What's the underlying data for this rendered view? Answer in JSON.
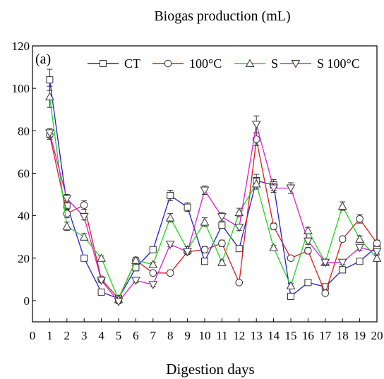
{
  "chart_data": {
    "type": "line",
    "ylabel": "Biogas production (mL)",
    "xlabel": "Digestion days",
    "panel_label": "(a)",
    "xlim": [
      0,
      20
    ],
    "ylim": [
      -10,
      120
    ],
    "x_ticks": [
      "0",
      "1",
      "2",
      "3",
      "4",
      "5",
      "6",
      "7",
      "8",
      "9",
      "10",
      "11",
      "12",
      "13",
      "14",
      "15",
      "16",
      "17",
      "18",
      "19",
      "20"
    ],
    "y_ticks": [
      "0",
      "20",
      "40",
      "60",
      "80",
      "100",
      "120"
    ],
    "grid": false,
    "legend_position": "top",
    "x": [
      1,
      2,
      3,
      4,
      5,
      6,
      7,
      8,
      9,
      10,
      11,
      12,
      13,
      14,
      15,
      16,
      17,
      18,
      19,
      20
    ],
    "series": [
      {
        "name": "CT",
        "color": "#1f1fd6",
        "marker": "square",
        "values": [
          104,
          45,
          20,
          4,
          1,
          15.5,
          24,
          49.5,
          44,
          18.5,
          35.5,
          24.5,
          56.5,
          54.5,
          2,
          8.5,
          6.5,
          14.5,
          18.5,
          25.5
        ],
        "errors": [
          5,
          2,
          1,
          1,
          1,
          1.5,
          1,
          2.5,
          2,
          1.5,
          1.5,
          1,
          3,
          2.5,
          1.5,
          1,
          1,
          1.5,
          1,
          1.5
        ]
      },
      {
        "name": "100°C",
        "color": "#e01a1a",
        "marker": "circle",
        "values": [
          78,
          41,
          45,
          10,
          1,
          19,
          13,
          13,
          23,
          24,
          27,
          8.5,
          76,
          35,
          20,
          23.5,
          3.5,
          29,
          38.5,
          27
        ],
        "errors": [
          2,
          2,
          2,
          1,
          1,
          1,
          1,
          1,
          1,
          1.5,
          1.5,
          1,
          3,
          1.5,
          1,
          1.5,
          1,
          1,
          2,
          1.5
        ]
      },
      {
        "name": "S",
        "color": "#1fd61f",
        "marker": "triangle-up",
        "values": [
          96,
          35,
          30,
          20,
          0.5,
          19,
          17,
          39,
          24,
          37,
          18,
          41.5,
          55,
          25,
          7,
          33,
          18,
          44.5,
          29,
          20
        ],
        "errors": [
          5,
          2,
          1.5,
          1,
          1,
          1.5,
          1,
          2,
          1.5,
          2,
          1,
          2,
          2.5,
          1,
          1,
          1.5,
          1,
          2,
          1.5,
          1.5
        ]
      },
      {
        "name": "S 100°C",
        "color": "#d61fd6",
        "marker": "triangle-down",
        "values": [
          79,
          48,
          39.5,
          9.5,
          -0.5,
          9.5,
          7.5,
          26.5,
          23,
          52,
          39.5,
          34.5,
          83,
          53,
          53,
          28,
          18,
          18,
          25,
          23
        ],
        "errors": [
          2,
          2,
          1.5,
          1,
          1,
          1,
          1,
          1,
          1,
          2,
          2,
          1.5,
          4,
          2,
          2.5,
          1.5,
          1,
          1,
          1.5,
          1
        ]
      }
    ]
  }
}
